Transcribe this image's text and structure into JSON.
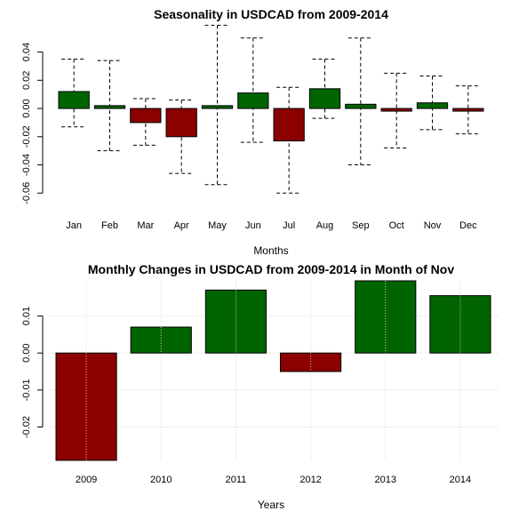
{
  "colors": {
    "positive": "#006400",
    "negative": "#8b0000",
    "whisker": "#000000",
    "grid": "#d3d3d3"
  },
  "chart_data": [
    {
      "type": "bar",
      "title": "Seasonality in USDCAD from 2009-2014",
      "xlabel": "Months",
      "ylabel": "",
      "ylim": [
        -0.068,
        0.058
      ],
      "yticks": [
        "0.04",
        "0.02",
        "0.00",
        "-0.02",
        "-0.04",
        "-0.06"
      ],
      "ytick_values": [
        0.04,
        0.02,
        0.0,
        -0.02,
        -0.04,
        -0.06
      ],
      "grid": false,
      "categories": [
        "Jan",
        "Feb",
        "Mar",
        "Apr",
        "May",
        "Jun",
        "Jul",
        "Aug",
        "Sep",
        "Oct",
        "Nov",
        "Dec"
      ],
      "values": [
        0.012,
        0.002,
        -0.01,
        -0.02,
        0.002,
        0.011,
        -0.023,
        0.014,
        0.003,
        -0.001,
        0.004,
        -0.001
      ],
      "error_high": [
        0.035,
        0.034,
        0.007,
        0.006,
        0.059,
        0.05,
        0.015,
        0.035,
        0.05,
        0.025,
        0.023,
        0.016
      ],
      "error_low": [
        -0.013,
        -0.03,
        -0.026,
        -0.046,
        -0.054,
        -0.024,
        -0.06,
        -0.007,
        -0.04,
        -0.028,
        -0.015,
        -0.018
      ]
    },
    {
      "type": "bar",
      "title": "Monthly Changes in USDCAD from 2009-2014 in Month of Nov",
      "xlabel": "Years",
      "ylabel": "",
      "ylim": [
        -0.029,
        0.0195
      ],
      "yticks": [
        "0.01",
        "0.00",
        "-0.01",
        "-0.02"
      ],
      "ytick_values": [
        0.01,
        0.0,
        -0.01,
        -0.02
      ],
      "grid": true,
      "categories": [
        "2009",
        "2010",
        "2011",
        "2012",
        "2013",
        "2014"
      ],
      "values": [
        -0.029,
        0.007,
        0.017,
        -0.005,
        0.0195,
        0.0155
      ]
    }
  ]
}
